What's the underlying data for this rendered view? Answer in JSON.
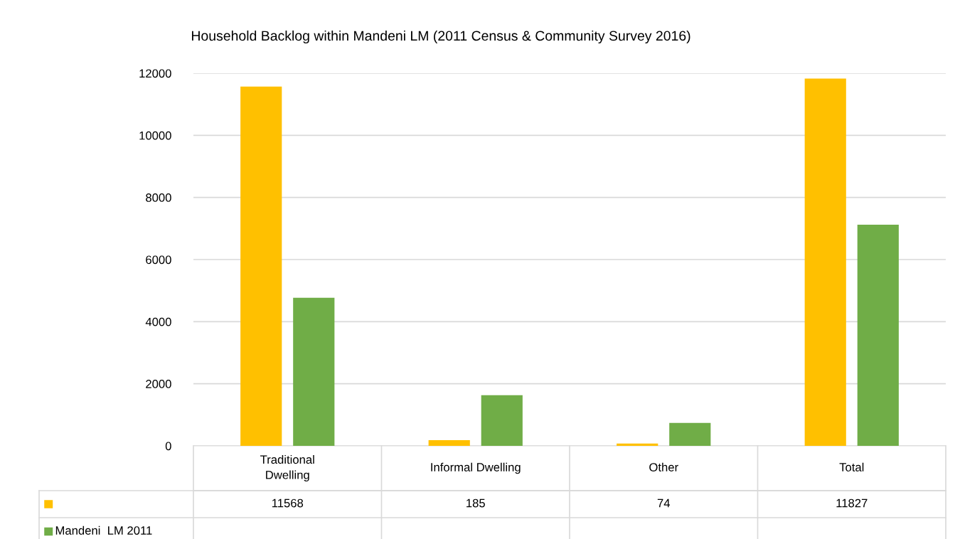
{
  "chart_data": {
    "type": "bar",
    "title": "Household Backlog within Mandeni LM (2011 Census & Community Survey 2016)",
    "categories": [
      "Traditional\nDwelling",
      "Informal Dwelling",
      "Other",
      "Total"
    ],
    "series": [
      {
        "color": "#ffc000",
        "values": [
          11568,
          185,
          74,
          11827
        ],
        "value_labels": [
          "11568",
          "185",
          "74",
          "11827"
        ]
      },
      {
        "name": "Mandeni  LM 2011",
        "color": "#70ad47",
        "values": [
          4770,
          1630,
          740,
          7120
        ]
      }
    ],
    "ylim": [
      0,
      12000
    ],
    "yticks": [
      0,
      2000,
      4000,
      6000,
      8000,
      10000,
      12000
    ],
    "grid": "y",
    "legend": "bottom left"
  }
}
